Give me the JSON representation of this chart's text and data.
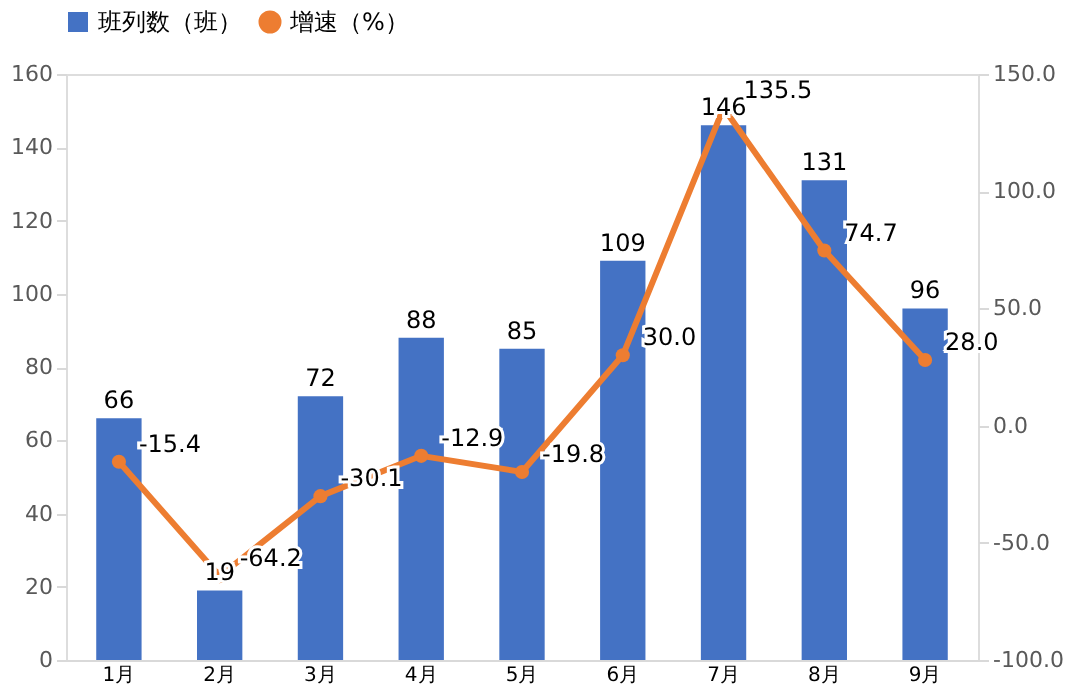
{
  "chart_data": {
    "type": "bar",
    "categories": [
      "1月",
      "2月",
      "3月",
      "4月",
      "5月",
      "6月",
      "7月",
      "8月",
      "9月"
    ],
    "series": [
      {
        "name": "班列数（班）",
        "type": "bar",
        "color": "#4472c4",
        "values": [
          66,
          19,
          72,
          88,
          85,
          109,
          146,
          131,
          96
        ]
      },
      {
        "name": "增速（%）",
        "type": "line",
        "axis": "y2",
        "color": "#ed7d31",
        "values": [
          -15.4,
          -64.2,
          -30.1,
          -12.9,
          -19.8,
          30.0,
          135.5,
          74.7,
          28.0
        ],
        "value_labels": [
          "-15.4",
          "-64.2",
          "-30.1",
          "-12.9",
          "-19.8",
          "30.0",
          "135.5",
          "74.7",
          "28.0"
        ]
      }
    ],
    "data_labels": true,
    "ylim": [
      0,
      160
    ],
    "yticks": [
      0,
      20,
      40,
      60,
      80,
      100,
      120,
      140,
      160
    ],
    "y2lim": [
      -100,
      150
    ],
    "y2ticks": [
      {
        "value": -100,
        "label": "-100.0"
      },
      {
        "value": -50,
        "label": "-50.0"
      },
      {
        "value": 0,
        "label": "0.0"
      },
      {
        "value": 50,
        "label": "50.0"
      },
      {
        "value": 100,
        "label": "100.0"
      },
      {
        "value": 150,
        "label": "150.0"
      }
    ],
    "grid": false,
    "legend": "top",
    "marker": "circle",
    "line_style": "solid"
  }
}
